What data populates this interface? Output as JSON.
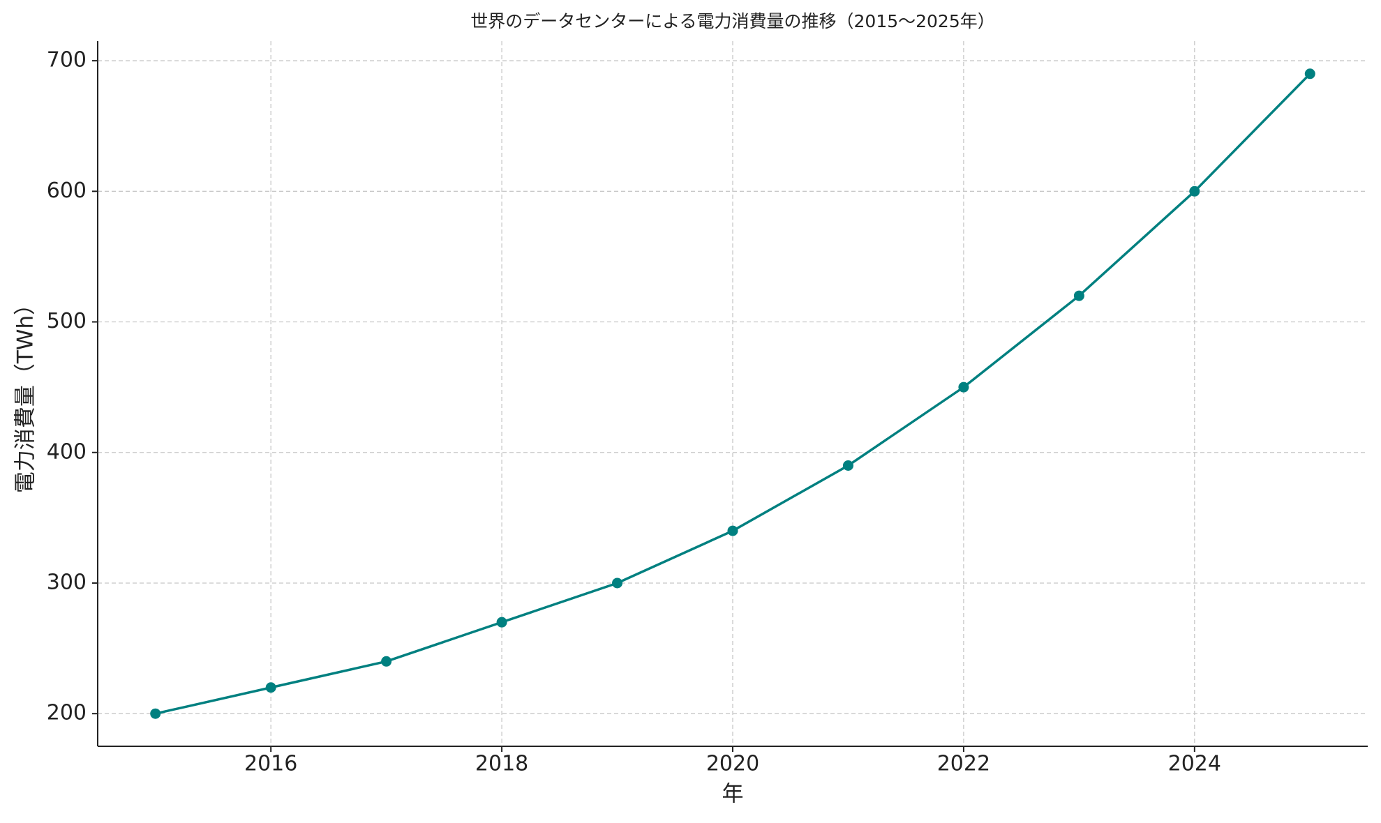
{
  "chart_data": {
    "type": "line",
    "title": "世界のデータセンターによる電力消費量の推移（2015〜2025年）",
    "x_label": "年",
    "y_label": "電力消費量（TWh）",
    "x": [
      2015,
      2016,
      2017,
      2018,
      2019,
      2020,
      2021,
      2022,
      2023,
      2024,
      2025
    ],
    "series": [
      {
        "color": "#008080",
        "values": [
          200,
          220,
          240,
          270,
          300,
          340,
          390,
          450,
          520,
          600,
          690
        ]
      }
    ],
    "xlim": [
      2014.5,
      2025.5
    ],
    "xticks": [
      2016,
      2018,
      2020,
      2022,
      2024
    ],
    "ylim": [
      175,
      715
    ],
    "yticks": [
      200,
      300,
      400,
      500,
      600,
      700
    ],
    "grid": true
  }
}
